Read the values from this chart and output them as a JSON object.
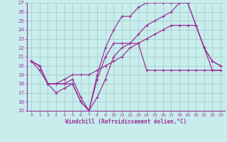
{
  "xlabel": "Windchill (Refroidissement éolien,°C)",
  "bg_color": "#c8eded",
  "grid_color": "#aacccc",
  "line_color": "#993399",
  "xlim": [
    -0.5,
    23.5
  ],
  "ylim": [
    15,
    27
  ],
  "yticks": [
    15,
    16,
    17,
    18,
    19,
    20,
    21,
    22,
    23,
    24,
    25,
    26,
    27
  ],
  "xticks": [
    0,
    1,
    2,
    3,
    4,
    5,
    6,
    7,
    8,
    9,
    10,
    11,
    12,
    13,
    14,
    15,
    16,
    17,
    18,
    19,
    20,
    21,
    22,
    23
  ],
  "series": [
    {
      "x": [
        0,
        1,
        2,
        3,
        4,
        5,
        6,
        7,
        8,
        9,
        10,
        11,
        12,
        13,
        14,
        15,
        16,
        17,
        18,
        19,
        20,
        21,
        22,
        23
      ],
      "y": [
        20.5,
        20.0,
        18.0,
        18.0,
        18.0,
        18.0,
        16.0,
        15.0,
        18.5,
        21.0,
        22.5,
        22.5,
        22.5,
        22.5,
        19.5,
        19.5,
        19.5,
        19.5,
        19.5,
        19.5,
        19.5,
        19.5,
        19.5,
        19.5
      ]
    },
    {
      "x": [
        0,
        1,
        2,
        3,
        4,
        5,
        6,
        7,
        8,
        9,
        10,
        11,
        12,
        13,
        14,
        15,
        16,
        17,
        18,
        19,
        20,
        21,
        22,
        23
      ],
      "y": [
        20.5,
        20.0,
        18.0,
        18.0,
        18.0,
        18.5,
        16.5,
        15.0,
        19.0,
        22.0,
        24.0,
        25.5,
        25.5,
        26.5,
        27.0,
        27.0,
        27.0,
        27.0,
        27.0,
        27.0,
        24.5,
        22.0,
        20.5,
        20.0
      ]
    },
    {
      "x": [
        0,
        1,
        2,
        3,
        4,
        5,
        6,
        7,
        8,
        9,
        10,
        11,
        12,
        13,
        14,
        15,
        16,
        17,
        18,
        19,
        20,
        21,
        22,
        23
      ],
      "y": [
        20.5,
        20.0,
        18.0,
        18.0,
        18.5,
        19.0,
        19.0,
        19.0,
        19.5,
        20.0,
        20.5,
        21.0,
        22.0,
        22.5,
        23.0,
        23.5,
        24.0,
        24.5,
        24.5,
        24.5,
        24.5,
        22.0,
        19.5,
        19.5
      ]
    },
    {
      "x": [
        0,
        1,
        2,
        3,
        4,
        5,
        6,
        7,
        8,
        9,
        10,
        11,
        12,
        13,
        14,
        15,
        16,
        17,
        18,
        19,
        20,
        21,
        22,
        23
      ],
      "y": [
        20.5,
        19.5,
        18.0,
        17.0,
        17.5,
        18.0,
        16.0,
        15.0,
        16.5,
        18.5,
        21.0,
        22.0,
        22.5,
        23.5,
        24.5,
        25.0,
        25.5,
        26.0,
        27.0,
        27.0,
        24.5,
        22.0,
        20.5,
        20.0
      ]
    }
  ]
}
